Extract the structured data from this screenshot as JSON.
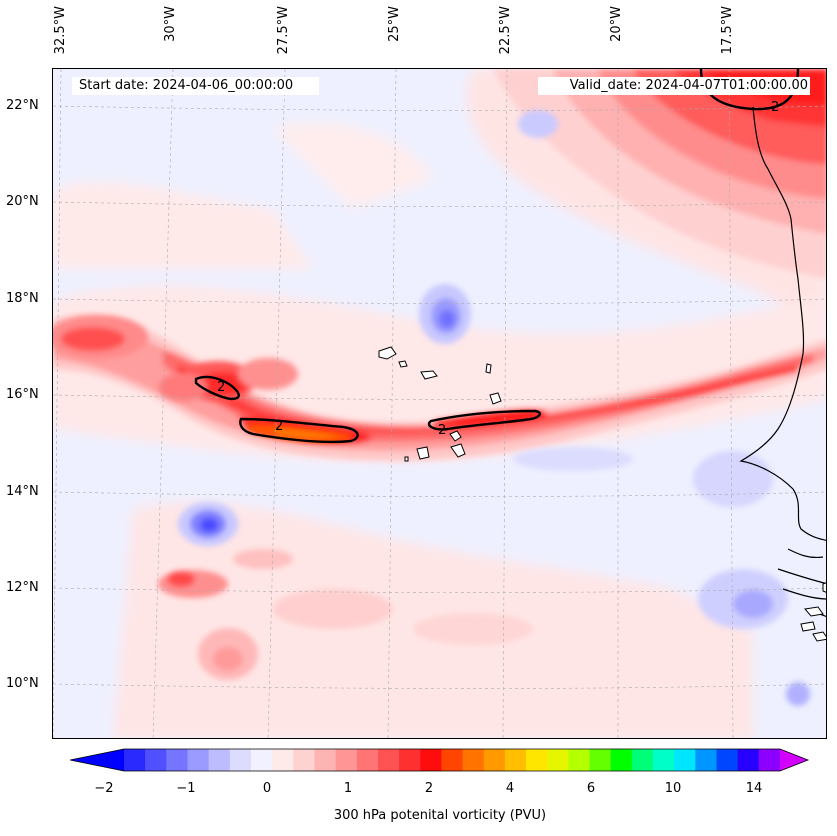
{
  "map": {
    "start_date": "Start date: 2024-04-06_00:00:00",
    "valid_date": "Valid_date: 2024-04-07T01:00:00.00",
    "lon_labels": [
      "32.5°W",
      "30°W",
      "27.5°W",
      "25°W",
      "22.5°W",
      "20°W",
      "17.5°W"
    ],
    "lat_labels": [
      "22°N",
      "20°N",
      "18°N",
      "16°N",
      "14°N",
      "12°N",
      "10°N"
    ],
    "contour_label": "2"
  },
  "colorbar": {
    "ticks": [
      "−2",
      "−1",
      "0",
      "1",
      "2",
      "4",
      "6",
      "10",
      "14"
    ],
    "label": "300 hPa potenital vorticity (PVU)",
    "colors": [
      "#0000ff",
      "#2a2aff",
      "#5050ff",
      "#7575ff",
      "#9a9aff",
      "#bcbcff",
      "#dcdcff",
      "#f1f1ff",
      "#ffeaea",
      "#ffd2d2",
      "#ffb4b4",
      "#ff9595",
      "#ff7575",
      "#ff5353",
      "#ff3030",
      "#ff0d0d",
      "#ff4500",
      "#ff7300",
      "#ff9900",
      "#ffbe00",
      "#ffe600",
      "#e6f500",
      "#b4ff00",
      "#64ff00",
      "#00ff00",
      "#00ff78",
      "#00ffc8",
      "#00e6ff",
      "#0096ff",
      "#0046ff",
      "#2800ff",
      "#8c00ff",
      "#d200ff"
    ]
  }
}
